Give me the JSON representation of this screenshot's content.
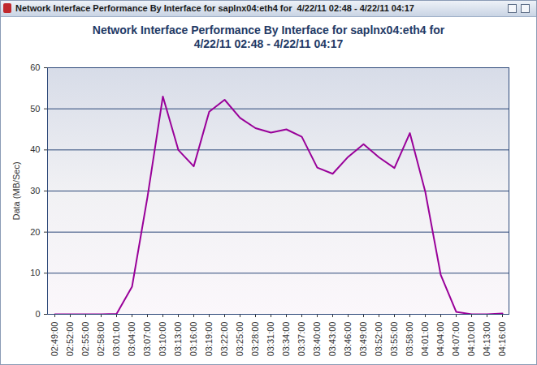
{
  "window_title": "Network Interface Performance By Interface for saplnx04:eth4 for  4/22/11 02:48 - 4/22/11 04:17",
  "chart_data": {
    "type": "line",
    "title": "Network Interface Performance By Interface for saplnx04:eth4 for",
    "subtitle": "4/22/11 02:48 - 4/22/11 04:17",
    "y_label": "Data (MB/Sec)",
    "categories": [
      "02:49:00",
      "02:52:00",
      "02:55:00",
      "02:58:00",
      "03:01:00",
      "03:04:00",
      "03:07:00",
      "03:10:00",
      "03:13:00",
      "03:16:00",
      "03:19:00",
      "03:22:00",
      "03:25:00",
      "03:28:00",
      "03:31:00",
      "03:34:00",
      "03:37:00",
      "03:40:00",
      "03:43:00",
      "03:46:00",
      "03:49:00",
      "03:52:00",
      "03:55:00",
      "03:58:00",
      "04:01:00",
      "04:04:00",
      "04:07:00",
      "04:10:00",
      "04:13:00",
      "04:16:00"
    ],
    "values": [
      0,
      0,
      0,
      0,
      0.1,
      6.7,
      28.5,
      53,
      40,
      36,
      49.3,
      52.2,
      47.8,
      45.3,
      44.2,
      45,
      43.2,
      35.7,
      34.2,
      38.3,
      41.4,
      38.2,
      35.6,
      44.1,
      29.8,
      9.6,
      0.6,
      0,
      0,
      0.2
    ],
    "color": "#990099",
    "ylim": [
      0,
      60
    ],
    "yticks": [
      0,
      10,
      20,
      30,
      40,
      50,
      60
    ],
    "grid": true
  }
}
